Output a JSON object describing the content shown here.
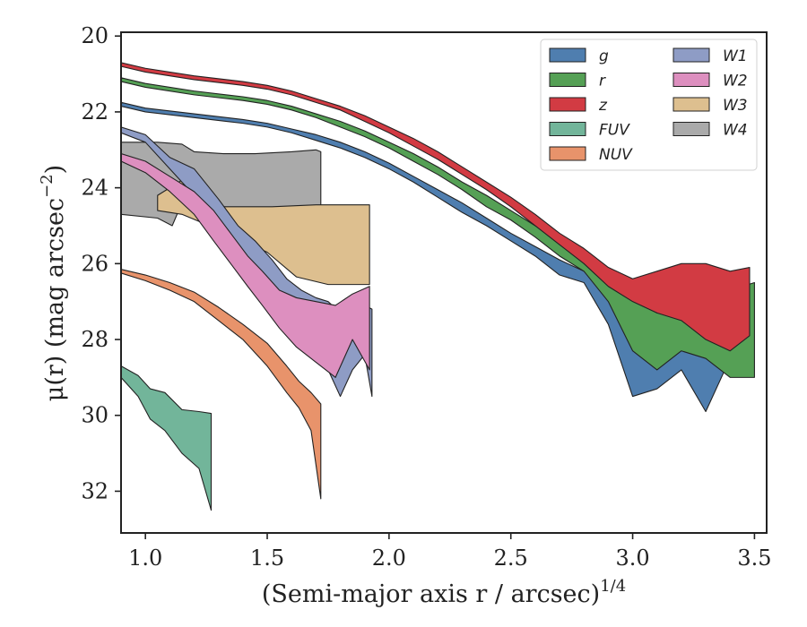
{
  "chart_data": {
    "type": "area",
    "xlabel": "(Semi-major axis r / arcsec)",
    "xlabel_sup": "1/4",
    "ylabel": "μ(r) (mag arcsec",
    "ylabel_sup": "−2",
    "ylabel_end": ")",
    "xlim": [
      0.9,
      3.55
    ],
    "ylim": [
      33.1,
      19.9
    ],
    "y_inverted": true,
    "xticks": [
      1.0,
      1.5,
      2.0,
      2.5,
      3.0,
      3.5
    ],
    "xtick_labels": [
      "1.0",
      "1.5",
      "2.0",
      "2.5",
      "3.0",
      "3.5"
    ],
    "yticks": [
      20,
      22,
      24,
      26,
      28,
      30,
      32
    ],
    "ytick_labels": [
      "20",
      "22",
      "24",
      "26",
      "28",
      "30",
      "32"
    ],
    "grid": false,
    "legend_position": "top-right",
    "legend_columns": 2,
    "series": [
      {
        "name": "W4",
        "color": "#aaaaaa",
        "upper": [
          [
            0.9,
            22.8
          ],
          [
            1.05,
            22.8
          ],
          [
            1.15,
            22.85
          ],
          [
            1.2,
            23.05
          ],
          [
            1.32,
            23.1
          ],
          [
            1.45,
            23.1
          ],
          [
            1.6,
            23.05
          ],
          [
            1.7,
            23.0
          ],
          [
            1.72,
            23.05
          ]
        ],
        "lower": [
          [
            0.9,
            24.7
          ],
          [
            1.05,
            24.8
          ],
          [
            1.11,
            25.0
          ],
          [
            1.17,
            24.1
          ],
          [
            1.25,
            24.4
          ],
          [
            1.33,
            24.95
          ],
          [
            1.5,
            24.8
          ],
          [
            1.6,
            24.75
          ],
          [
            1.67,
            24.6
          ],
          [
            1.7,
            24.5
          ],
          [
            1.72,
            25.2
          ]
        ]
      },
      {
        "name": "W3",
        "color": "#ddbf8f",
        "upper": [
          [
            1.05,
            24.2
          ],
          [
            1.15,
            23.8
          ],
          [
            1.2,
            23.8
          ],
          [
            1.3,
            24.5
          ],
          [
            1.52,
            24.5
          ],
          [
            1.7,
            24.45
          ],
          [
            1.82,
            24.45
          ],
          [
            1.92,
            24.45
          ]
        ],
        "lower": [
          [
            1.05,
            24.6
          ],
          [
            1.15,
            24.7
          ],
          [
            1.3,
            25.1
          ],
          [
            1.5,
            25.7
          ],
          [
            1.62,
            26.35
          ],
          [
            1.75,
            26.55
          ],
          [
            1.85,
            26.55
          ],
          [
            1.92,
            26.55
          ]
        ]
      },
      {
        "name": "W1",
        "color": "#8e9cc5",
        "upper": [
          [
            0.9,
            22.4
          ],
          [
            1.0,
            22.6
          ],
          [
            1.1,
            23.2
          ],
          [
            1.2,
            23.5
          ],
          [
            1.3,
            24.3
          ],
          [
            1.38,
            25.0
          ],
          [
            1.45,
            25.4
          ],
          [
            1.52,
            25.9
          ],
          [
            1.58,
            26.4
          ],
          [
            1.64,
            26.7
          ],
          [
            1.7,
            26.9
          ],
          [
            1.75,
            27.0
          ],
          [
            1.8,
            27.3
          ],
          [
            1.85,
            27.2
          ],
          [
            1.9,
            27.1
          ],
          [
            1.93,
            27.2
          ]
        ],
        "lower": [
          [
            0.9,
            22.55
          ],
          [
            1.0,
            22.8
          ],
          [
            1.1,
            23.5
          ],
          [
            1.2,
            24.2
          ],
          [
            1.3,
            25.0
          ],
          [
            1.38,
            25.8
          ],
          [
            1.45,
            26.5
          ],
          [
            1.52,
            27.0
          ],
          [
            1.58,
            27.4
          ],
          [
            1.64,
            27.7
          ],
          [
            1.7,
            28.2
          ],
          [
            1.75,
            28.8
          ],
          [
            1.8,
            29.5
          ],
          [
            1.85,
            28.8
          ],
          [
            1.9,
            28.4
          ],
          [
            1.93,
            29.5
          ]
        ]
      },
      {
        "name": "W2",
        "color": "#dd8fbf",
        "upper": [
          [
            0.9,
            23.1
          ],
          [
            1.0,
            23.3
          ],
          [
            1.1,
            23.7
          ],
          [
            1.2,
            24.1
          ],
          [
            1.28,
            24.6
          ],
          [
            1.35,
            25.2
          ],
          [
            1.42,
            25.8
          ],
          [
            1.48,
            26.2
          ],
          [
            1.55,
            26.7
          ],
          [
            1.62,
            26.9
          ],
          [
            1.7,
            27.0
          ],
          [
            1.78,
            27.1
          ],
          [
            1.85,
            26.8
          ],
          [
            1.92,
            26.6
          ]
        ],
        "lower": [
          [
            0.9,
            23.3
          ],
          [
            1.0,
            23.6
          ],
          [
            1.1,
            24.1
          ],
          [
            1.2,
            24.7
          ],
          [
            1.28,
            25.4
          ],
          [
            1.35,
            26.0
          ],
          [
            1.42,
            26.6
          ],
          [
            1.48,
            27.1
          ],
          [
            1.55,
            27.7
          ],
          [
            1.62,
            28.2
          ],
          [
            1.7,
            28.6
          ],
          [
            1.78,
            29.0
          ],
          [
            1.85,
            28.0
          ],
          [
            1.92,
            28.8
          ]
        ]
      },
      {
        "name": "NUV",
        "color": "#e8936b",
        "upper": [
          [
            0.9,
            26.15
          ],
          [
            1.0,
            26.3
          ],
          [
            1.1,
            26.5
          ],
          [
            1.2,
            26.75
          ],
          [
            1.3,
            27.15
          ],
          [
            1.4,
            27.6
          ],
          [
            1.5,
            28.1
          ],
          [
            1.58,
            28.7
          ],
          [
            1.63,
            29.1
          ],
          [
            1.68,
            29.4
          ],
          [
            1.72,
            29.7
          ]
        ],
        "lower": [
          [
            0.9,
            26.25
          ],
          [
            1.0,
            26.45
          ],
          [
            1.1,
            26.7
          ],
          [
            1.2,
            27.0
          ],
          [
            1.3,
            27.5
          ],
          [
            1.4,
            28.0
          ],
          [
            1.5,
            28.7
          ],
          [
            1.58,
            29.4
          ],
          [
            1.63,
            29.8
          ],
          [
            1.68,
            30.4
          ],
          [
            1.72,
            32.2
          ]
        ]
      },
      {
        "name": "FUV",
        "color": "#72b59a",
        "upper": [
          [
            0.9,
            28.7
          ],
          [
            0.97,
            28.95
          ],
          [
            1.02,
            29.3
          ],
          [
            1.08,
            29.4
          ],
          [
            1.15,
            29.85
          ],
          [
            1.22,
            29.9
          ],
          [
            1.27,
            29.95
          ]
        ],
        "lower": [
          [
            0.9,
            29.0
          ],
          [
            0.97,
            29.5
          ],
          [
            1.02,
            30.1
          ],
          [
            1.08,
            30.4
          ],
          [
            1.15,
            31.0
          ],
          [
            1.22,
            31.4
          ],
          [
            1.27,
            32.5
          ]
        ]
      },
      {
        "name": "g",
        "color": "#4f7eaf",
        "upper": [
          [
            0.9,
            21.75
          ],
          [
            1.0,
            21.9
          ],
          [
            1.2,
            22.05
          ],
          [
            1.4,
            22.2
          ],
          [
            1.5,
            22.3
          ],
          [
            1.6,
            22.45
          ],
          [
            1.7,
            22.6
          ],
          [
            1.8,
            22.8
          ],
          [
            1.9,
            23.05
          ],
          [
            2.0,
            23.35
          ],
          [
            2.1,
            23.7
          ],
          [
            2.2,
            24.05
          ],
          [
            2.3,
            24.4
          ],
          [
            2.4,
            24.8
          ],
          [
            2.5,
            25.2
          ],
          [
            2.6,
            25.55
          ],
          [
            2.7,
            25.9
          ],
          [
            2.8,
            26.2
          ],
          [
            2.9,
            26.7
          ],
          [
            3.0,
            27.3
          ],
          [
            3.1,
            27.8
          ],
          [
            3.2,
            27.6
          ],
          [
            3.3,
            27.2
          ],
          [
            3.4,
            26.8
          ],
          [
            3.48,
            26.5
          ]
        ],
        "lower": [
          [
            0.9,
            21.85
          ],
          [
            1.0,
            22.0
          ],
          [
            1.2,
            22.15
          ],
          [
            1.4,
            22.3
          ],
          [
            1.5,
            22.4
          ],
          [
            1.6,
            22.55
          ],
          [
            1.7,
            22.75
          ],
          [
            1.8,
            22.95
          ],
          [
            1.9,
            23.2
          ],
          [
            2.0,
            23.5
          ],
          [
            2.1,
            23.85
          ],
          [
            2.2,
            24.25
          ],
          [
            2.3,
            24.65
          ],
          [
            2.4,
            25.0
          ],
          [
            2.5,
            25.4
          ],
          [
            2.6,
            25.8
          ],
          [
            2.7,
            26.3
          ],
          [
            2.8,
            26.5
          ],
          [
            2.9,
            27.6
          ],
          [
            3.0,
            29.5
          ],
          [
            3.1,
            29.3
          ],
          [
            3.2,
            28.8
          ],
          [
            3.3,
            29.9
          ],
          [
            3.4,
            28.5
          ],
          [
            3.48,
            28.0
          ]
        ]
      },
      {
        "name": "r",
        "color": "#55a055",
        "upper": [
          [
            0.9,
            21.1
          ],
          [
            1.0,
            21.25
          ],
          [
            1.2,
            21.45
          ],
          [
            1.4,
            21.6
          ],
          [
            1.5,
            21.7
          ],
          [
            1.6,
            21.85
          ],
          [
            1.7,
            22.05
          ],
          [
            1.8,
            22.25
          ],
          [
            1.9,
            22.5
          ],
          [
            2.0,
            22.8
          ],
          [
            2.1,
            23.1
          ],
          [
            2.2,
            23.45
          ],
          [
            2.3,
            23.85
          ],
          [
            2.4,
            24.2
          ],
          [
            2.5,
            24.6
          ],
          [
            2.6,
            25.0
          ],
          [
            2.7,
            25.4
          ],
          [
            2.8,
            25.8
          ],
          [
            2.9,
            26.3
          ],
          [
            3.0,
            26.9
          ],
          [
            3.1,
            27.3
          ],
          [
            3.2,
            27.2
          ],
          [
            3.3,
            26.9
          ],
          [
            3.4,
            26.7
          ],
          [
            3.5,
            26.5
          ]
        ],
        "lower": [
          [
            0.9,
            21.2
          ],
          [
            1.0,
            21.35
          ],
          [
            1.2,
            21.55
          ],
          [
            1.4,
            21.7
          ],
          [
            1.5,
            21.8
          ],
          [
            1.6,
            21.95
          ],
          [
            1.7,
            22.15
          ],
          [
            1.8,
            22.4
          ],
          [
            1.9,
            22.65
          ],
          [
            2.0,
            22.95
          ],
          [
            2.1,
            23.3
          ],
          [
            2.2,
            23.65
          ],
          [
            2.3,
            24.05
          ],
          [
            2.4,
            24.5
          ],
          [
            2.5,
            24.85
          ],
          [
            2.6,
            25.3
          ],
          [
            2.7,
            25.8
          ],
          [
            2.8,
            26.2
          ],
          [
            2.9,
            27.0
          ],
          [
            3.0,
            28.3
          ],
          [
            3.1,
            28.8
          ],
          [
            3.2,
            28.3
          ],
          [
            3.3,
            28.5
          ],
          [
            3.4,
            29.0
          ],
          [
            3.5,
            29.0
          ]
        ]
      },
      {
        "name": "z",
        "color": "#d23b43",
        "upper": [
          [
            0.9,
            20.7
          ],
          [
            1.0,
            20.85
          ],
          [
            1.2,
            21.05
          ],
          [
            1.4,
            21.2
          ],
          [
            1.5,
            21.3
          ],
          [
            1.6,
            21.45
          ],
          [
            1.7,
            21.65
          ],
          [
            1.8,
            21.85
          ],
          [
            1.9,
            22.1
          ],
          [
            2.0,
            22.4
          ],
          [
            2.1,
            22.7
          ],
          [
            2.2,
            23.05
          ],
          [
            2.3,
            23.45
          ],
          [
            2.4,
            23.85
          ],
          [
            2.5,
            24.25
          ],
          [
            2.6,
            24.7
          ],
          [
            2.7,
            25.2
          ],
          [
            2.8,
            25.6
          ],
          [
            2.9,
            26.1
          ],
          [
            3.0,
            26.4
          ],
          [
            3.1,
            26.2
          ],
          [
            3.2,
            26.0
          ],
          [
            3.3,
            26.0
          ],
          [
            3.4,
            26.2
          ],
          [
            3.48,
            26.1
          ]
        ],
        "lower": [
          [
            0.9,
            20.8
          ],
          [
            1.0,
            20.95
          ],
          [
            1.2,
            21.15
          ],
          [
            1.4,
            21.3
          ],
          [
            1.5,
            21.4
          ],
          [
            1.6,
            21.55
          ],
          [
            1.7,
            21.75
          ],
          [
            1.8,
            21.95
          ],
          [
            1.9,
            22.25
          ],
          [
            2.0,
            22.55
          ],
          [
            2.1,
            22.9
          ],
          [
            2.2,
            23.25
          ],
          [
            2.3,
            23.65
          ],
          [
            2.4,
            24.05
          ],
          [
            2.5,
            24.5
          ],
          [
            2.6,
            25.0
          ],
          [
            2.7,
            25.5
          ],
          [
            2.8,
            26.0
          ],
          [
            2.9,
            26.6
          ],
          [
            3.0,
            27.0
          ],
          [
            3.1,
            27.3
          ],
          [
            3.2,
            27.5
          ],
          [
            3.3,
            28.0
          ],
          [
            3.4,
            28.3
          ],
          [
            3.48,
            27.9
          ]
        ]
      }
    ],
    "legend": [
      {
        "label": "g",
        "color": "#4f7eaf"
      },
      {
        "label": "r",
        "color": "#55a055"
      },
      {
        "label": "z",
        "color": "#d23b43"
      },
      {
        "label": "FUV",
        "color": "#72b59a"
      },
      {
        "label": "NUV",
        "color": "#e8936b"
      },
      {
        "label": "W1",
        "color": "#8e9cc5"
      },
      {
        "label": "W2",
        "color": "#dd8fbf"
      },
      {
        "label": "W3",
        "color": "#ddbf8f"
      },
      {
        "label": "W4",
        "color": "#aaaaaa"
      }
    ]
  }
}
